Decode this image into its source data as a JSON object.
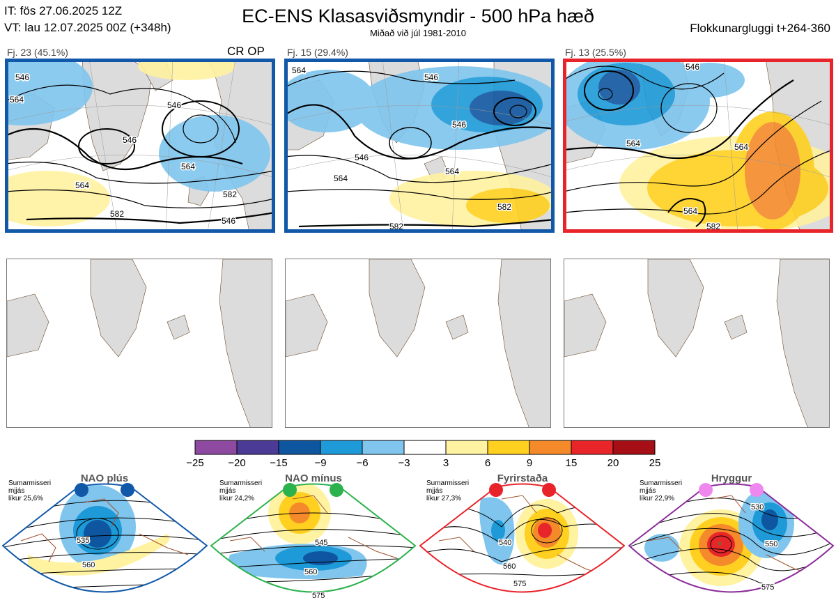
{
  "header": {
    "it_line": "IT: fös 27.06.2025 12Z",
    "vt_line": "VT: lau 12.07.2025 00Z  (+348h)",
    "title": "EC-ENS Klasasviðsmyndir - 500 hPa hæð",
    "subtitle": "Miðað við júl 1981-2010",
    "window": "Flokkunargluggi t+264-360"
  },
  "clusters": [
    {
      "label": "Fj. 23 (45.1%)",
      "extra": "CR OP",
      "frame_color": "#1158a8",
      "contour_labels": [
        "546",
        "564",
        "546",
        "546",
        "564",
        "564",
        "582",
        "582",
        "546"
      ]
    },
    {
      "label": "Fj. 15 (29.4%)",
      "extra": "",
      "frame_color": "#1158a8",
      "contour_labels": [
        "564",
        "546",
        "546",
        "546",
        "564",
        "564",
        "582",
        "582"
      ]
    },
    {
      "label": "Fj. 13 (25.5%)",
      "extra": "",
      "frame_color": "#e8232a",
      "contour_labels": [
        "546",
        "564",
        "564",
        "564",
        "582"
      ]
    }
  ],
  "colorbar": {
    "ticks": [
      "−25",
      "−20",
      "−15",
      "−9",
      "−6",
      "−3",
      "3",
      "6",
      "9",
      "15",
      "20",
      "25"
    ],
    "colors": [
      "#8e4aa0",
      "#4b3a96",
      "#0f56a0",
      "#1e9ad8",
      "#7fc5ee",
      "#ffffff",
      "#fff2a0",
      "#ffd020",
      "#f58a2a",
      "#e8262a",
      "#a50f15"
    ]
  },
  "regimes": [
    {
      "name": "NAO plús",
      "season": "Sumarmisseri",
      "smoothing": "mjjás",
      "prob": "líkur 25,6%",
      "dot_color": "#1158a8",
      "frame_color": "#1158a8",
      "contour_labels": [
        "535",
        "560"
      ]
    },
    {
      "name": "NAO mínus",
      "season": "Sumarmisseri",
      "smoothing": "mjjás",
      "prob": "líkur 24,2%",
      "dot_color": "#2bb24c",
      "frame_color": "#2bb24c",
      "contour_labels": [
        "545",
        "560",
        "575"
      ]
    },
    {
      "name": "Fyrirstaða",
      "season": "Sumarmisseri",
      "smoothing": "mjjás",
      "prob": "líkur 27,3%",
      "dot_color": "#e8232a",
      "frame_color": "#e8232a",
      "contour_labels": [
        "540",
        "560",
        "575"
      ]
    },
    {
      "name": "Hryggur",
      "season": "Sumarmisseri",
      "smoothing": "mjjás",
      "prob": "líkur 22,9%",
      "dot_color": "#ee88ee",
      "frame_color": "#8c2b9a",
      "contour_labels": [
        "530",
        "550",
        "575"
      ]
    }
  ],
  "map_colors": {
    "land": "#dcdcdc",
    "coast": "#6b4a2a",
    "regime_coast": "#a0522d"
  }
}
